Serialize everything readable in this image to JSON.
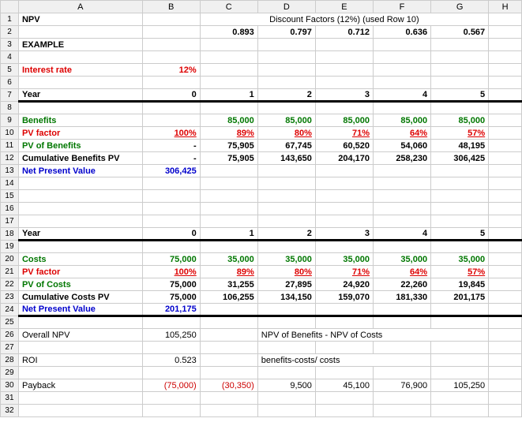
{
  "colors": {
    "header_bg": "#f0f0f0",
    "grid": "#cccccc",
    "black": "#000000",
    "red": "#dd0000",
    "blue": "#0000cc",
    "green": "#007700",
    "paren_red": "#cc0000"
  },
  "columns": [
    "",
    "A",
    "B",
    "C",
    "D",
    "E",
    "F",
    "G",
    "H"
  ],
  "col_widths": {
    "rownum": 22,
    "A": 150,
    "B": 70,
    "C": 70,
    "D": 70,
    "E": 70,
    "F": 70,
    "G": 70,
    "H": 40
  },
  "row_count": 32,
  "section1": {
    "title": "NPV",
    "discount_label": "Discount Factors (12%) (used Row 10)",
    "discount_values": [
      "0.893",
      "0.797",
      "0.712",
      "0.636",
      "0.567"
    ],
    "example": "EXAMPLE",
    "interest_label": "Interest rate",
    "interest_value": "12%",
    "year_label": "Year",
    "years": [
      "0",
      "1",
      "2",
      "3",
      "4",
      "5"
    ]
  },
  "benefits": {
    "label": "Benefits",
    "values": [
      "",
      "85,000",
      "85,000",
      "85,000",
      "85,000",
      "85,000"
    ],
    "pv_factor_label": "PV factor",
    "pv_factor": [
      "100%",
      "89%",
      "80%",
      "71%",
      "64%",
      "57%"
    ],
    "pv_benefits_label": "PV of Benefits",
    "pv_benefits": [
      "-",
      "75,905",
      "67,745",
      "60,520",
      "54,060",
      "48,195"
    ],
    "cum_label": "Cumulative Benefits PV",
    "cum": [
      "-",
      "75,905",
      "143,650",
      "204,170",
      "258,230",
      "306,425"
    ],
    "npv_label": "Net Present Value",
    "npv": "306,425"
  },
  "costs": {
    "year_label": "Year",
    "years": [
      "0",
      "1",
      "2",
      "3",
      "4",
      "5"
    ],
    "label": "Costs",
    "values": [
      "75,000",
      "35,000",
      "35,000",
      "35,000",
      "35,000",
      "35,000"
    ],
    "pv_factor_label": "PV factor",
    "pv_factor": [
      "100%",
      "89%",
      "80%",
      "71%",
      "64%",
      "57%"
    ],
    "pv_costs_label": "PV of Costs",
    "pv_costs": [
      "75,000",
      "31,255",
      "27,895",
      "24,920",
      "22,260",
      "19,845"
    ],
    "cum_label": "Cumulative Costs PV",
    "cum": [
      "75,000",
      "106,255",
      "134,150",
      "159,070",
      "181,330",
      "201,175"
    ],
    "npv_label": "Net Present Value",
    "npv": "201,175"
  },
  "summary": {
    "overall_label": "Overall NPV",
    "overall_value": "105,250",
    "overall_note": "NPV of Benefits - NPV of Costs",
    "roi_label": "ROI",
    "roi_value": "0.523",
    "roi_note": "benefits-costs/ costs",
    "payback_label": "Payback",
    "payback": [
      "(75,000)",
      "(30,350)",
      "9,500",
      "45,100",
      "76,900",
      "105,250"
    ]
  }
}
